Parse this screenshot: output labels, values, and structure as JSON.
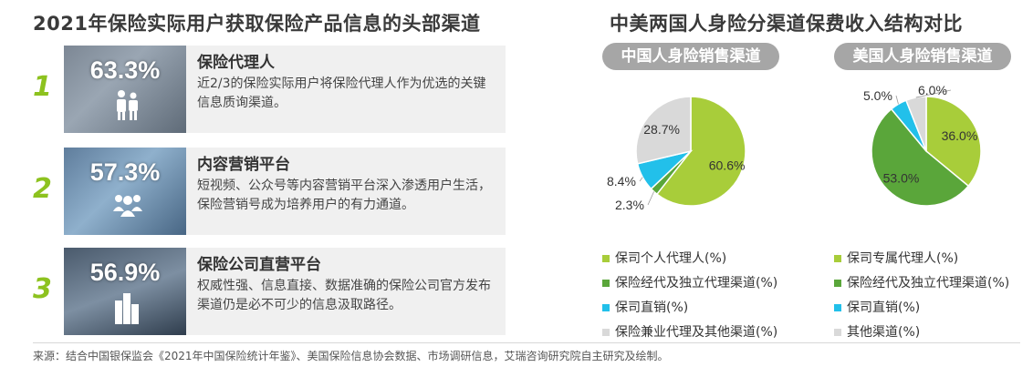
{
  "left": {
    "title": "2021年保险实际用户获取保险产品信息的头部渠道",
    "channels": [
      {
        "rank": "1",
        "pct": "63.3%",
        "name": "保险代理人",
        "desc": "近2/3的保险实际用户将保险代理人作为优选的关键信息质询渠道。",
        "icon": "people-icon"
      },
      {
        "rank": "2",
        "pct": "57.3%",
        "name": "内容营销平台",
        "desc": "短视频、公众号等内容营销平台深入渗透用户生活，保险营销号成为培养用户的有力通道。",
        "icon": "group-icon"
      },
      {
        "rank": "3",
        "pct": "56.9%",
        "name": "保险公司直营平台",
        "desc": "权威性强、信息直接、数据准确的保险公司官方发布渠道仍是必不可少的信息汲取路径。",
        "icon": "building-icon"
      }
    ]
  },
  "chart_data": {
    "type": "pie",
    "title": "中美两国人身险分渠道保费收入结构对比",
    "charts": [
      {
        "name": "中国人身险销售渠道",
        "slices": [
          {
            "label": "保司个人代理人(%)",
            "value": 60.6,
            "display": "60.6%",
            "color": "#a8cd3a"
          },
          {
            "label": "保险经代及独立代理渠道(%)",
            "value": 2.3,
            "display": "2.3%",
            "color": "#5aa63a"
          },
          {
            "label": "保司直销(%)",
            "value": 8.4,
            "display": "8.4%",
            "color": "#22c0ea"
          },
          {
            "label": "保险兼业代理及其他渠道(%)",
            "value": 28.7,
            "display": "28.7%",
            "color": "#d9d9d9"
          }
        ]
      },
      {
        "name": "美国人身险销售渠道",
        "slices": [
          {
            "label": "保司专属代理人(%)",
            "value": 36.0,
            "display": "36.0%",
            "color": "#a8cd3a"
          },
          {
            "label": "保险经代及独立代理渠道(%)",
            "value": 53.0,
            "display": "53.0%",
            "color": "#5aa63a"
          },
          {
            "label": "保司直销(%)",
            "value": 5.0,
            "display": "5.0%",
            "color": "#22c0ea"
          },
          {
            "label": "其他渠道(%)",
            "value": 6.0,
            "display": "6.0%",
            "color": "#d9d9d9"
          }
        ]
      }
    ]
  },
  "footer": {
    "source": "来源：结合中国银保监会《2021年中国保险统计年鉴》、美国保险信息协会数据、市场调研信息，艾瑞咨询研究院自主研究及绘制。"
  }
}
